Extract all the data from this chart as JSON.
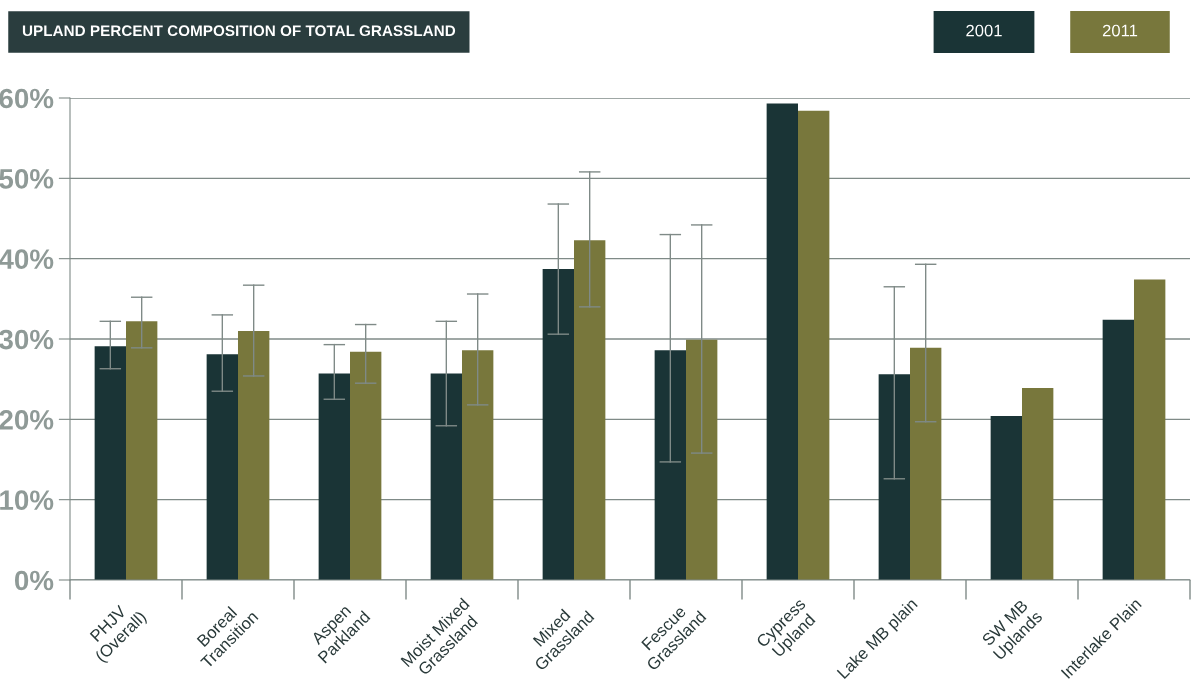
{
  "chart_data": {
    "type": "bar",
    "title": "UPLAND PERCENT COMPOSITION OF TOTAL GRASSLAND",
    "categories": [
      "PHJV\n(Overall)",
      "Boreal\nTransition",
      "Aspen\nParkland",
      "Moist Mixed\nGrassland",
      "Mixed\nGrassland",
      "Fescue\nGrassland",
      "Cypress\nUpland",
      "Lake MB plain",
      "SW MB\nUplands",
      "Interlake Plain"
    ],
    "series": [
      {
        "name": "2001",
        "color": "#1a3436",
        "values": [
          29.1,
          28.1,
          25.7,
          25.7,
          38.7,
          28.6,
          59.3,
          25.6,
          20.4,
          32.4
        ],
        "errors": [
          [
            26.3,
            32.2
          ],
          [
            23.5,
            33.0
          ],
          [
            22.5,
            29.3
          ],
          [
            19.2,
            32.2
          ],
          [
            30.6,
            46.8
          ],
          [
            14.7,
            43.0
          ],
          null,
          [
            12.6,
            36.5
          ],
          null,
          null
        ]
      },
      {
        "name": "2011",
        "color": "#78773c",
        "values": [
          32.2,
          31.0,
          28.4,
          28.6,
          42.3,
          29.9,
          58.4,
          28.9,
          23.9,
          37.4
        ],
        "errors": [
          [
            28.9,
            35.2
          ],
          [
            25.4,
            36.7
          ],
          [
            24.5,
            31.8
          ],
          [
            21.8,
            35.6
          ],
          [
            34.0,
            50.8
          ],
          [
            15.8,
            44.2
          ],
          null,
          [
            19.7,
            39.3
          ],
          null,
          null
        ]
      }
    ],
    "ylim": [
      0,
      60
    ],
    "yticks": [
      {
        "value": 0,
        "label": "0%"
      },
      {
        "value": 10,
        "label": "10%"
      },
      {
        "value": 20,
        "label": "20%"
      },
      {
        "value": 30,
        "label": "30%"
      },
      {
        "value": 40,
        "label": "40%"
      },
      {
        "value": 50,
        "label": "50%"
      },
      {
        "value": 60,
        "label": "60%"
      }
    ],
    "grid": "y",
    "legend": "top right"
  }
}
